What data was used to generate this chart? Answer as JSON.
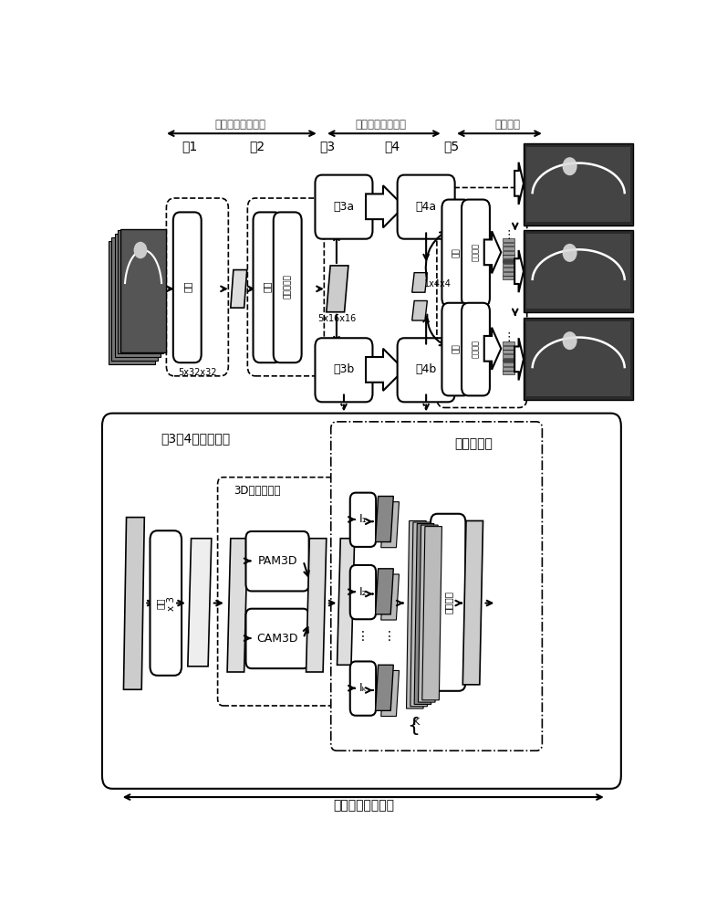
{
  "bg_color": "#ffffff",
  "top_labels": [
    "低级特征提取阶段",
    "高级特征提取阶段",
    "分类阶段"
  ],
  "block_labels": [
    "块1",
    "块2",
    "块3",
    "块4",
    "块5"
  ],
  "bottom_label": "注意力多尺度模块",
  "inner_label": "块3块4的内部结构",
  "inner_sublabel1": "3D注意力模块",
  "inner_sublabel2": "多尺度模块"
}
